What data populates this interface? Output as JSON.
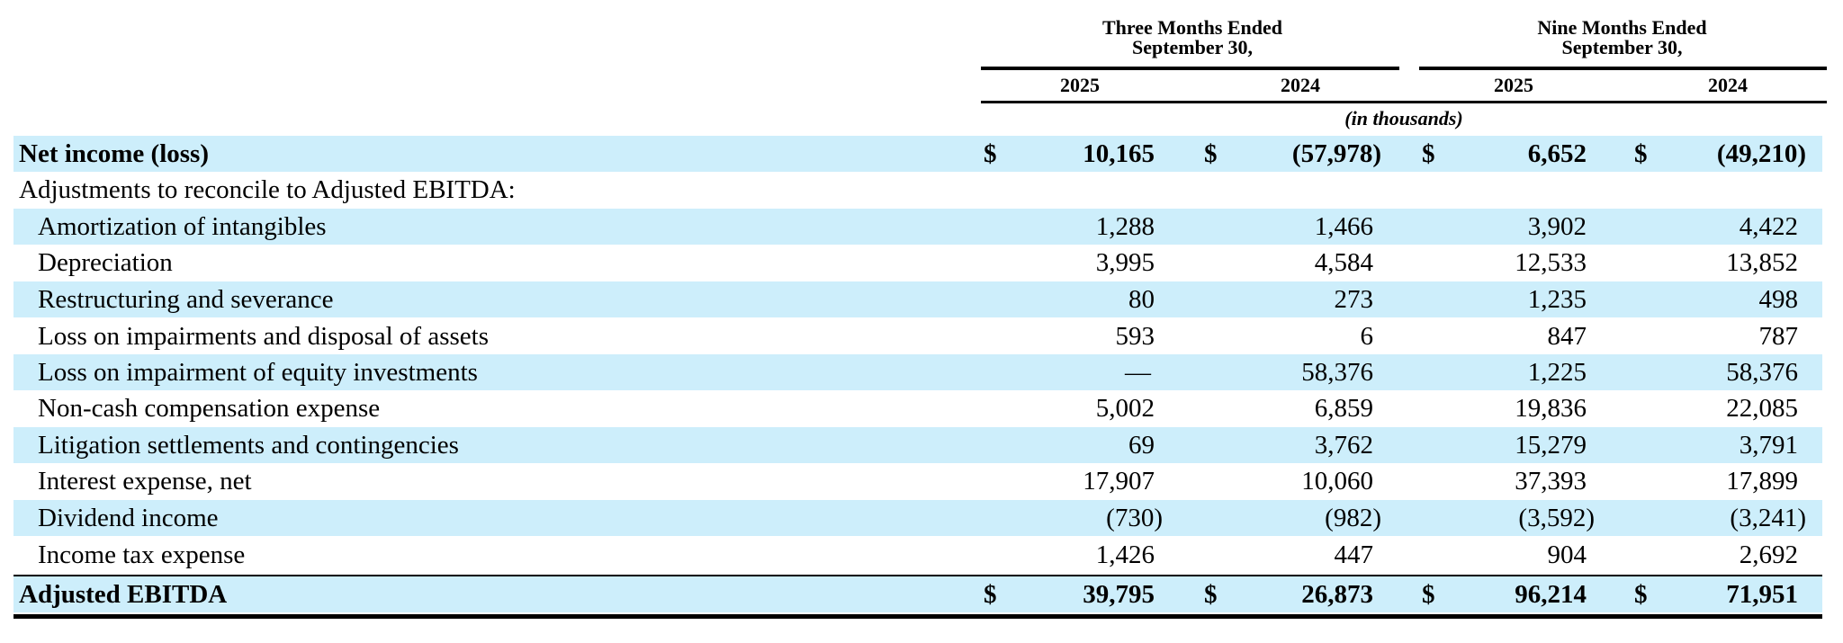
{
  "header": {
    "group1": "Three Months Ended\nSeptember 30,",
    "group2": "Nine Months Ended\nSeptember 30,",
    "years": [
      "2025",
      "2024",
      "2025",
      "2024"
    ],
    "units": "(in thousands)"
  },
  "rows": [
    {
      "label": "Net income (loss)",
      "values": [
        "10,165",
        "(57,978)",
        "6,652",
        "(49,210)"
      ],
      "dollar": "$",
      "bold": true,
      "indent": false,
      "shaded": true
    },
    {
      "label": "Adjustments to reconcile to Adjusted EBITDA:",
      "values": [
        "",
        "",
        "",
        ""
      ],
      "dollar": "",
      "bold": false,
      "indent": false,
      "shaded": false
    },
    {
      "label": "Amortization of intangibles",
      "values": [
        "1,288",
        "1,466",
        "3,902",
        "4,422"
      ],
      "dollar": "",
      "bold": false,
      "indent": true,
      "shaded": true
    },
    {
      "label": "Depreciation",
      "values": [
        "3,995",
        "4,584",
        "12,533",
        "13,852"
      ],
      "dollar": "",
      "bold": false,
      "indent": true,
      "shaded": false
    },
    {
      "label": "Restructuring and severance",
      "values": [
        "80",
        "273",
        "1,235",
        "498"
      ],
      "dollar": "",
      "bold": false,
      "indent": true,
      "shaded": true
    },
    {
      "label": "Loss on impairments and disposal of assets",
      "values": [
        "593",
        "6",
        "847",
        "787"
      ],
      "dollar": "",
      "bold": false,
      "indent": true,
      "shaded": false
    },
    {
      "label": "Loss on impairment of equity investments",
      "values": [
        "—",
        "58,376",
        "1,225",
        "58,376"
      ],
      "dollar": "",
      "bold": false,
      "indent": true,
      "shaded": true
    },
    {
      "label": "Non-cash compensation expense",
      "values": [
        "5,002",
        "6,859",
        "19,836",
        "22,085"
      ],
      "dollar": "",
      "bold": false,
      "indent": true,
      "shaded": false
    },
    {
      "label": "Litigation settlements and contingencies",
      "values": [
        "69",
        "3,762",
        "15,279",
        "3,791"
      ],
      "dollar": "",
      "bold": false,
      "indent": true,
      "shaded": true
    },
    {
      "label": "Interest expense, net",
      "values": [
        "17,907",
        "10,060",
        "37,393",
        "17,899"
      ],
      "dollar": "",
      "bold": false,
      "indent": true,
      "shaded": false
    },
    {
      "label": "Dividend income",
      "values": [
        "(730)",
        "(982)",
        "(3,592)",
        "(3,241)"
      ],
      "dollar": "",
      "bold": false,
      "indent": true,
      "shaded": true
    },
    {
      "label": "Income tax expense",
      "values": [
        "1,426",
        "447",
        "904",
        "2,692"
      ],
      "dollar": "",
      "bold": false,
      "indent": true,
      "shaded": false
    },
    {
      "label": "Adjusted EBITDA",
      "values": [
        "39,795",
        "26,873",
        "96,214",
        "71,951"
      ],
      "dollar": "$",
      "bold": true,
      "indent": false,
      "shaded": true
    }
  ],
  "colors": {
    "shade": "#cdeefb",
    "text": "#000000"
  }
}
